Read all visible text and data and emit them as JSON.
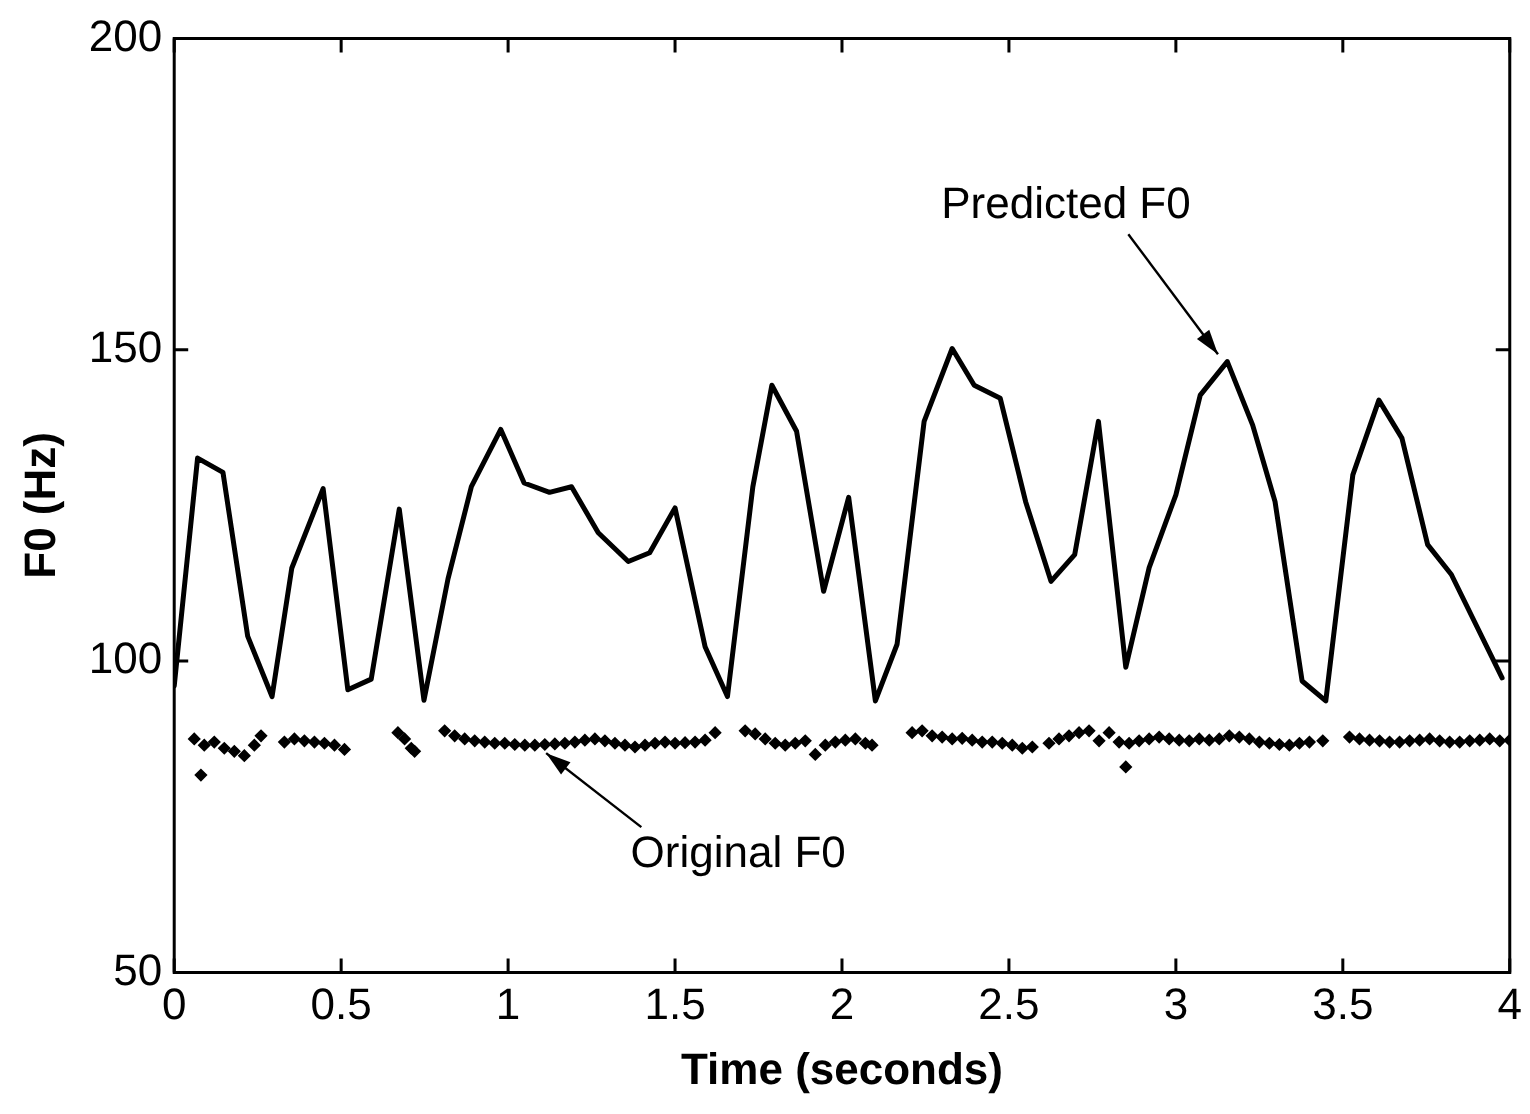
{
  "chart_data": {
    "type": "line",
    "xlabel": "Time (seconds)",
    "ylabel": "F0 (Hz)",
    "xlim": [
      0,
      4
    ],
    "xticks": [
      0,
      0.5,
      1,
      1.5,
      2,
      2.5,
      3,
      3.5,
      4
    ],
    "ylim": [
      50,
      200
    ],
    "yticks": [
      50,
      100,
      150,
      200
    ],
    "grid": false,
    "legend": false,
    "series": [
      {
        "color": "#000000",
        "marker": "none",
        "line_style": "solid",
        "x": [
          0,
          0.07,
          0.146,
          0.22,
          0.293,
          0.352,
          0.446,
          0.52,
          0.59,
          0.674,
          0.748,
          0.82,
          0.89,
          0.978,
          1.048,
          1.124,
          1.19,
          1.27,
          1.36,
          1.424,
          1.5,
          1.59,
          1.657,
          1.733,
          1.79,
          1.864,
          1.945,
          2.02,
          2.1,
          2.165,
          2.246,
          2.33,
          2.396,
          2.474,
          2.55,
          2.626,
          2.697,
          2.768,
          2.85,
          2.92,
          3.0,
          3.073,
          3.154,
          3.23,
          3.297,
          3.378,
          3.449,
          3.53,
          3.608,
          3.677,
          3.754,
          3.825,
          3.977
        ],
        "values": [
          96,
          132.6,
          130.3,
          104,
          94.3,
          114.9,
          127.7,
          95.4,
          97.1,
          124.4,
          93.7,
          113.2,
          128,
          137.2,
          128.6,
          127.1,
          128,
          120.6,
          116,
          117.4,
          124.6,
          102.3,
          94.3,
          128,
          144.3,
          136.9,
          111.2,
          126.3,
          93.6,
          102.7,
          138.5,
          150.2,
          144.3,
          142.2,
          125.6,
          112.8,
          117.1,
          138.5,
          99,
          115,
          126.7,
          142.7,
          148.1,
          137.9,
          125.6,
          96.8,
          93.6,
          129.9,
          141.9,
          135.8,
          118.7,
          113.9,
          97.3
        ]
      },
      {
        "type": "scatter",
        "color": "#000000",
        "marker": "diamond",
        "x": [
          0.06,
          0.08,
          0.09,
          0.12,
          0.15,
          0.18,
          0.21,
          0.24,
          0.26,
          0.33,
          0.36,
          0.39,
          0.42,
          0.45,
          0.48,
          0.51,
          0.67,
          0.69,
          0.71,
          0.72,
          0.81,
          0.84,
          0.87,
          0.9,
          0.93,
          0.96,
          0.99,
          1.02,
          1.05,
          1.08,
          1.11,
          1.14,
          1.17,
          1.2,
          1.23,
          1.26,
          1.29,
          1.32,
          1.35,
          1.38,
          1.41,
          1.44,
          1.47,
          1.5,
          1.53,
          1.56,
          1.59,
          1.62,
          1.71,
          1.74,
          1.77,
          1.8,
          1.83,
          1.86,
          1.89,
          1.92,
          1.95,
          1.98,
          2.01,
          2.04,
          2.07,
          2.09,
          2.21,
          2.24,
          2.27,
          2.3,
          2.33,
          2.36,
          2.39,
          2.42,
          2.45,
          2.48,
          2.51,
          2.54,
          2.57,
          2.62,
          2.65,
          2.68,
          2.71,
          2.74,
          2.77,
          2.8,
          2.83,
          2.85,
          2.86,
          2.89,
          2.92,
          2.95,
          2.98,
          3.01,
          3.04,
          3.07,
          3.1,
          3.13,
          3.16,
          3.19,
          3.22,
          3.25,
          3.28,
          3.31,
          3.34,
          3.37,
          3.4,
          3.44,
          3.52,
          3.55,
          3.58,
          3.61,
          3.64,
          3.67,
          3.7,
          3.73,
          3.76,
          3.79,
          3.82,
          3.85,
          3.88,
          3.91,
          3.94,
          3.97,
          4.0
        ],
        "values": [
          87.5,
          81.7,
          86.5,
          87,
          86,
          85.5,
          84.8,
          86.5,
          88,
          87,
          87.5,
          87.2,
          87,
          86.8,
          86.5,
          85.8,
          88.5,
          87.5,
          86,
          85.5,
          88.8,
          88,
          87.5,
          87.2,
          87,
          86.8,
          86.8,
          86.6,
          86.5,
          86.5,
          86.6,
          86.7,
          86.8,
          87,
          87.3,
          87.5,
          87.2,
          86.8,
          86.5,
          86.2,
          86.5,
          86.8,
          87,
          86.8,
          86.9,
          87,
          87.3,
          88.5,
          88.8,
          88.3,
          87.5,
          86.8,
          86.5,
          86.8,
          87.2,
          85,
          86.5,
          87,
          87.3,
          87.5,
          86.8,
          86.5,
          88.5,
          88.8,
          88,
          87.8,
          87.5,
          87.6,
          87.3,
          87,
          87,
          86.8,
          86.5,
          86,
          86.2,
          86.8,
          87.5,
          88,
          88.5,
          88.8,
          87.2,
          88.5,
          87,
          83,
          86.8,
          87.2,
          87.5,
          87.8,
          87.5,
          87.3,
          87.2,
          87.5,
          87.3,
          87.5,
          88,
          87.8,
          87.5,
          87,
          86.8,
          86.6,
          86.5,
          86.8,
          87,
          87.2,
          87.8,
          87.5,
          87.3,
          87.2,
          87,
          87,
          87.2,
          87.3,
          87.5,
          87.2,
          87,
          87,
          87.2,
          87.3,
          87.5,
          87.2,
          87.3
        ]
      }
    ],
    "annotations": [
      {
        "text": "Predicted F0",
        "x": 3.15,
        "y": 148
      },
      {
        "text": "Original F0",
        "x": 1.09,
        "y": 86.5
      }
    ]
  }
}
